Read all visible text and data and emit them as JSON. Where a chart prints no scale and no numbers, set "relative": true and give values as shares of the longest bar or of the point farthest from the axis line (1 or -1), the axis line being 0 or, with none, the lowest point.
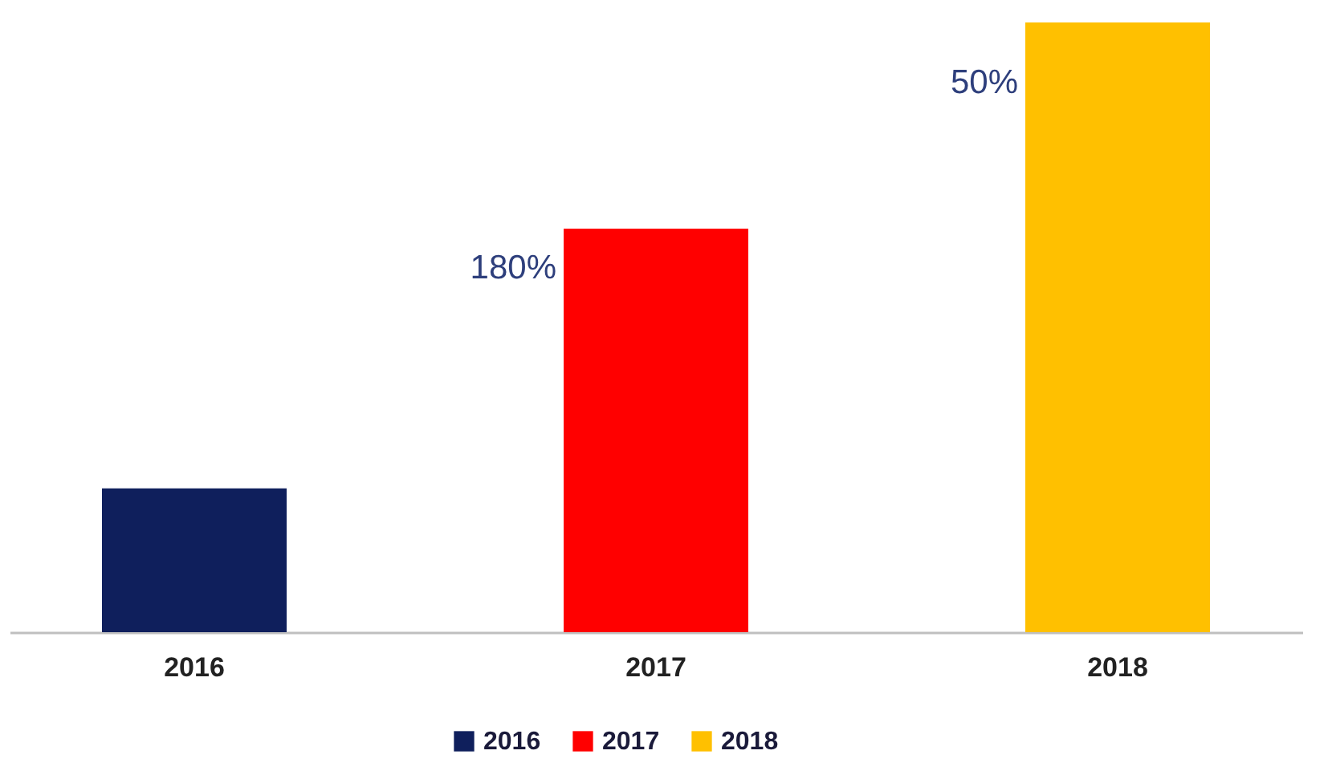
{
  "chart_data": {
    "type": "bar",
    "relative": true,
    "categories": [
      "2016",
      "2017",
      "2018"
    ],
    "series": [
      {
        "name": "2016",
        "color": "#0f1f5c",
        "values": [
          0.236,
          null,
          null
        ]
      },
      {
        "name": "2017",
        "color": "#ff0000",
        "values": [
          null,
          0.662,
          null
        ]
      },
      {
        "name": "2018",
        "color": "#ffc000",
        "values": [
          null,
          null,
          1
        ]
      }
    ],
    "annotations": [
      "180%",
      "50%"
    ],
    "legend": "bottom"
  }
}
